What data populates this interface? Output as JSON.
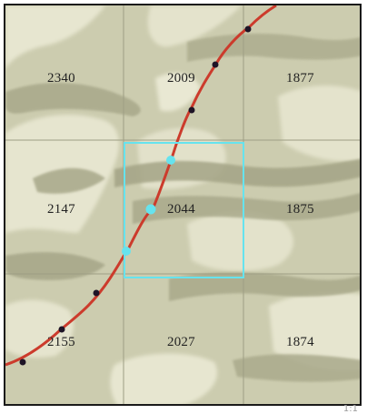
{
  "map": {
    "elevations": [
      [
        "2340",
        "2009",
        "1877"
      ],
      [
        "2147",
        "2044",
        "1875"
      ],
      [
        "2155",
        "2027",
        "1874"
      ]
    ]
  },
  "colors": {
    "background": "#ccccaf",
    "light_terrain": "#e7e6d0",
    "dark_terrain": "#a9a98a",
    "grid": "#9e9e84",
    "track": "#cc3b2c",
    "track_node": "#1e1426",
    "highlight": "#66e3ee"
  },
  "corner_text": "1:1"
}
